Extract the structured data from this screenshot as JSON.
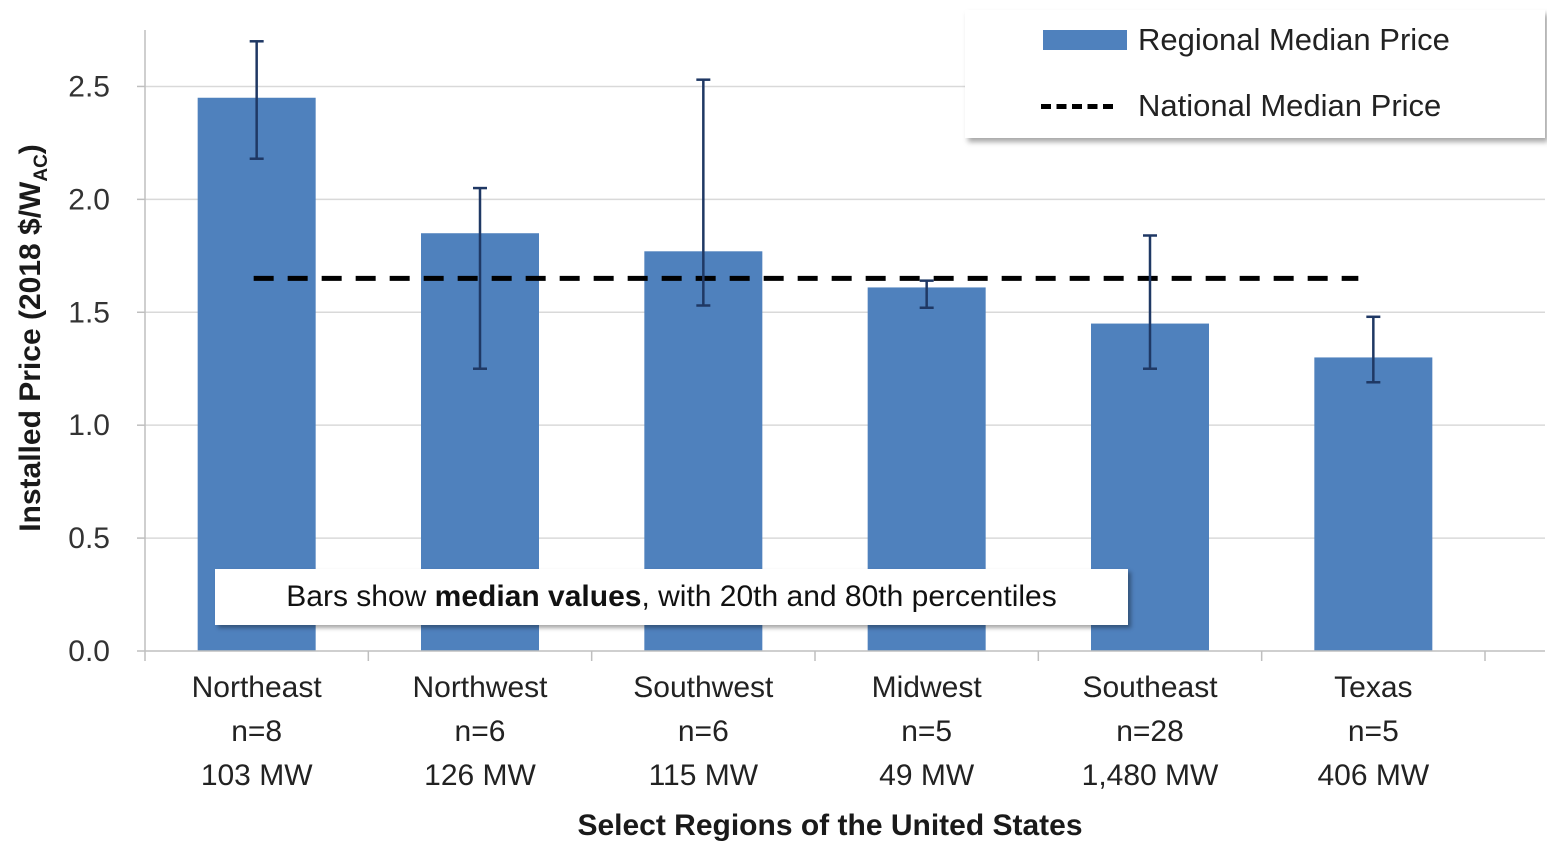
{
  "chart_data": {
    "type": "bar",
    "categories": [
      "Northeast",
      "Northwest",
      "Southwest",
      "Midwest",
      "Southeast",
      "Texas"
    ],
    "category_sublabels": [
      [
        "n=8",
        "103 MW"
      ],
      [
        "n=6",
        "126 MW"
      ],
      [
        "n=6",
        "115 MW"
      ],
      [
        "n=5",
        "49 MW"
      ],
      [
        "n=28",
        "1,480 MW"
      ],
      [
        "n=5",
        "406 MW"
      ]
    ],
    "series": [
      {
        "name": "Regional Median Price",
        "values": [
          2.45,
          1.85,
          1.77,
          1.61,
          1.45,
          1.3
        ],
        "error_low": [
          2.18,
          1.25,
          1.53,
          1.52,
          1.25,
          1.19
        ],
        "error_high": [
          2.7,
          2.05,
          2.53,
          1.64,
          1.84,
          1.48
        ],
        "color": "#4f81bd"
      }
    ],
    "reference_line": {
      "name": "National Median Price",
      "value": 1.65,
      "color": "#000000"
    },
    "ylabel_main": "Installed Price (2018 $/W",
    "ylabel_sub": "AC",
    "ylabel_end": ")",
    "xlabel": "Select Regions of the United States",
    "ylim": [
      0,
      2.75
    ],
    "yticks": [
      "0.0",
      "0.5",
      "1.0",
      "1.5",
      "2.0",
      "2.5"
    ],
    "ytick_values": [
      0,
      0.5,
      1.0,
      1.5,
      2.0,
      2.5
    ],
    "grid": true,
    "legend_position": "top-right"
  },
  "legend": {
    "bar_label": "Regional Median Price",
    "line_label": "National Median Price"
  },
  "note": {
    "prefix": "Bars show ",
    "bold": "median values",
    "suffix": ", with 20th and 80th percentiles"
  },
  "colors": {
    "bar": "#4f81bd",
    "error_bar": "#1f3864",
    "grid": "#d9d9d9",
    "axis": "#bfbfbf"
  }
}
